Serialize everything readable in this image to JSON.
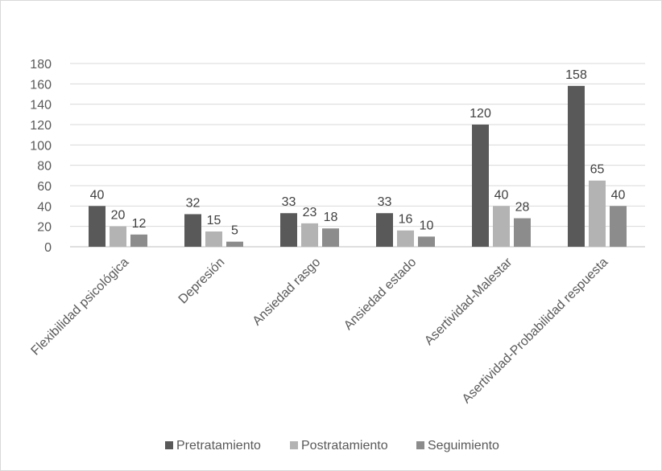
{
  "chart_data": {
    "type": "bar",
    "title": "",
    "xlabel": "",
    "ylabel": "",
    "ylim": [
      0,
      180
    ],
    "yticks": [
      0,
      20,
      40,
      60,
      80,
      100,
      120,
      140,
      160,
      180
    ],
    "grid": true,
    "legend_position": "bottom",
    "categories": [
      "Flexibilidad psicológica",
      "Depresión",
      "Ansiedad rasgo",
      "Ansiedad estado",
      "Asertividad-Malestar",
      "Asertividad-Probabilidad respuesta"
    ],
    "series": [
      {
        "name": "Pretratamiento",
        "color": "#595959",
        "values": [
          40,
          32,
          33,
          33,
          120,
          158
        ]
      },
      {
        "name": "Postratamiento",
        "color": "#b3b3b3",
        "values": [
          20,
          15,
          23,
          16,
          40,
          65
        ]
      },
      {
        "name": "Seguimiento",
        "color": "#8c8c8c",
        "values": [
          12,
          5,
          18,
          10,
          28,
          40
        ]
      }
    ]
  }
}
